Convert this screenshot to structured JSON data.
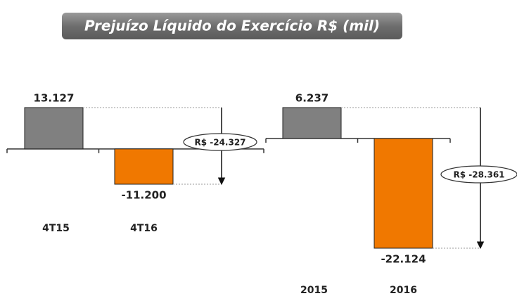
{
  "title": "Prejuízo Líquido do Exercício R$ (mil)",
  "chart_data": [
    {
      "type": "bar",
      "categories": [
        "4T15",
        "4T16"
      ],
      "values": [
        13127,
        -11200
      ],
      "value_labels": [
        "13.127",
        "-11.200"
      ],
      "colors": [
        "#808080",
        "#f07800"
      ],
      "annotation": "R$ -24.327"
    },
    {
      "type": "bar",
      "categories": [
        "2015",
        "2016"
      ],
      "values": [
        6237,
        -22124
      ],
      "value_labels": [
        "6.237",
        "-22.124"
      ],
      "colors": [
        "#808080",
        "#f07800"
      ],
      "annotation": "R$ -28.361"
    }
  ]
}
